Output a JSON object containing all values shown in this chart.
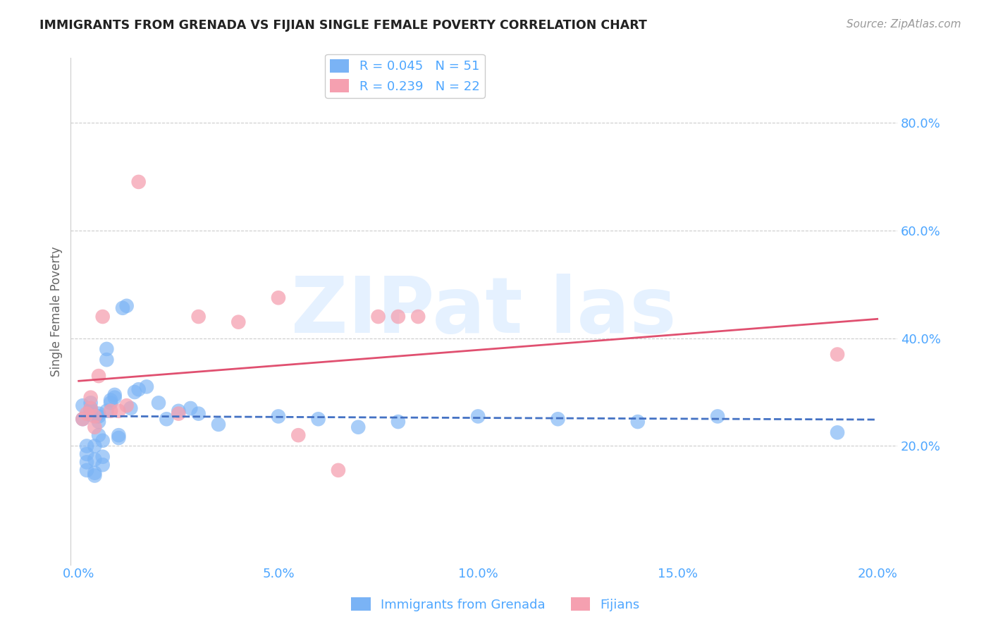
{
  "title": "IMMIGRANTS FROM GRENADA VS FIJIAN SINGLE FEMALE POVERTY CORRELATION CHART",
  "source": "Source: ZipAtlas.com",
  "ylabel": "Single Female Poverty",
  "x_tick_labels": [
    "0.0%",
    "5.0%",
    "10.0%",
    "15.0%",
    "20.0%"
  ],
  "x_tick_values": [
    0.0,
    0.05,
    0.1,
    0.15,
    0.2
  ],
  "y_tick_labels": [
    "20.0%",
    "40.0%",
    "60.0%",
    "80.0%"
  ],
  "y_tick_values": [
    0.2,
    0.4,
    0.6,
    0.8
  ],
  "xlim": [
    -0.002,
    0.205
  ],
  "ylim": [
    -0.02,
    0.92
  ],
  "bg": "#ffffff",
  "grid_color": "#cccccc",
  "legend_r1": "R = 0.045",
  "legend_n1": "N = 51",
  "legend_r2": "R = 0.239",
  "legend_n2": "N = 22",
  "color_grenada": "#7ab3f5",
  "color_fijian": "#f5a0b0",
  "color_grenada_line": "#4472c4",
  "color_fijian_line": "#e05070",
  "color_ticks": "#4da6ff",
  "grenada_x": [
    0.001,
    0.001,
    0.002,
    0.002,
    0.002,
    0.002,
    0.003,
    0.003,
    0.003,
    0.003,
    0.004,
    0.004,
    0.004,
    0.004,
    0.005,
    0.005,
    0.005,
    0.005,
    0.006,
    0.006,
    0.006,
    0.007,
    0.007,
    0.007,
    0.008,
    0.008,
    0.009,
    0.009,
    0.01,
    0.01,
    0.011,
    0.012,
    0.013,
    0.014,
    0.015,
    0.017,
    0.02,
    0.022,
    0.025,
    0.028,
    0.03,
    0.035,
    0.05,
    0.06,
    0.07,
    0.08,
    0.1,
    0.12,
    0.14,
    0.16,
    0.19
  ],
  "grenada_y": [
    0.275,
    0.25,
    0.2,
    0.185,
    0.17,
    0.155,
    0.28,
    0.27,
    0.265,
    0.258,
    0.15,
    0.145,
    0.175,
    0.2,
    0.26,
    0.255,
    0.245,
    0.22,
    0.165,
    0.18,
    0.21,
    0.38,
    0.36,
    0.265,
    0.28,
    0.285,
    0.29,
    0.295,
    0.22,
    0.215,
    0.456,
    0.46,
    0.27,
    0.3,
    0.305,
    0.31,
    0.28,
    0.25,
    0.265,
    0.27,
    0.26,
    0.24,
    0.255,
    0.25,
    0.235,
    0.245,
    0.255,
    0.25,
    0.245,
    0.255,
    0.225
  ],
  "fijian_x": [
    0.001,
    0.002,
    0.003,
    0.003,
    0.004,
    0.004,
    0.005,
    0.006,
    0.008,
    0.01,
    0.012,
    0.015,
    0.025,
    0.03,
    0.04,
    0.05,
    0.055,
    0.065,
    0.075,
    0.08,
    0.085,
    0.19
  ],
  "fijian_y": [
    0.25,
    0.26,
    0.27,
    0.29,
    0.235,
    0.255,
    0.33,
    0.44,
    0.265,
    0.265,
    0.275,
    0.69,
    0.26,
    0.44,
    0.43,
    0.475,
    0.22,
    0.155,
    0.44,
    0.44,
    0.44,
    0.37
  ]
}
